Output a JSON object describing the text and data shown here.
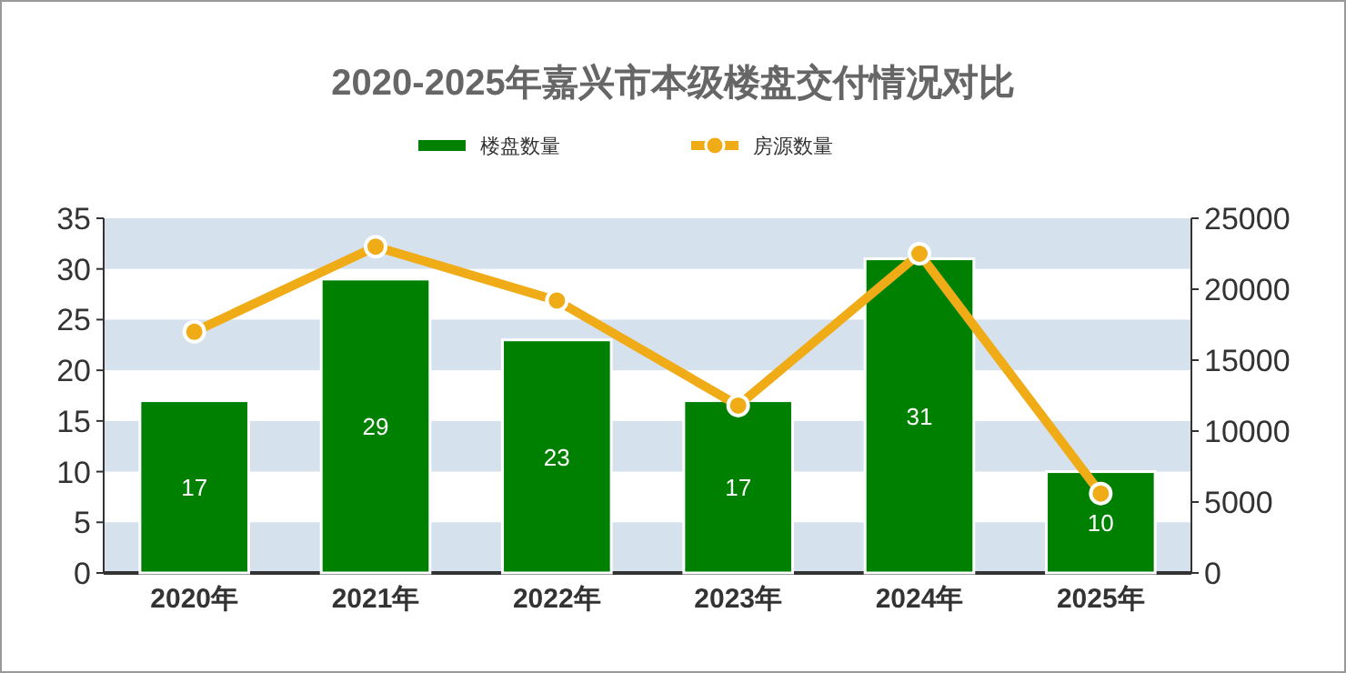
{
  "chart_data": {
    "type": "bar",
    "title": "2020-2025年嘉兴市本级楼盘交付情况对比",
    "categories": [
      "2020年",
      "2021年",
      "2022年",
      "2023年",
      "2024年",
      "2025年"
    ],
    "series": [
      {
        "name": "楼盘数量",
        "color": "#008000",
        "values": [
          17,
          29,
          23,
          17,
          31,
          10
        ],
        "value_labels": [
          "17",
          "29",
          "23",
          "17",
          "31",
          "10"
        ]
      },
      {
        "name": "房源数量",
        "type": "line",
        "axis": "y2",
        "color": "#f0ac17",
        "marker": "circle",
        "values": [
          17000,
          23000,
          19200,
          11800,
          22500,
          5600
        ]
      }
    ],
    "ylim": [
      0,
      35
    ],
    "yticks": [
      0,
      5,
      10,
      15,
      20,
      25,
      30,
      35
    ],
    "y2lim": [
      0,
      25000
    ],
    "y2ticks": [
      0,
      5000,
      10000,
      15000,
      20000,
      25000
    ],
    "bands": [
      {
        "axis": "y",
        "from": 0,
        "to": 5,
        "color": "#d6e1ee"
      },
      {
        "axis": "y",
        "from": 10,
        "to": 15,
        "color": "#d6e1ee"
      },
      {
        "axis": "y",
        "from": 20,
        "to": 25,
        "color": "#d6e1ee"
      },
      {
        "axis": "y",
        "from": 30,
        "to": 35,
        "color": "#d6e1ee"
      }
    ],
    "legend": "top"
  }
}
